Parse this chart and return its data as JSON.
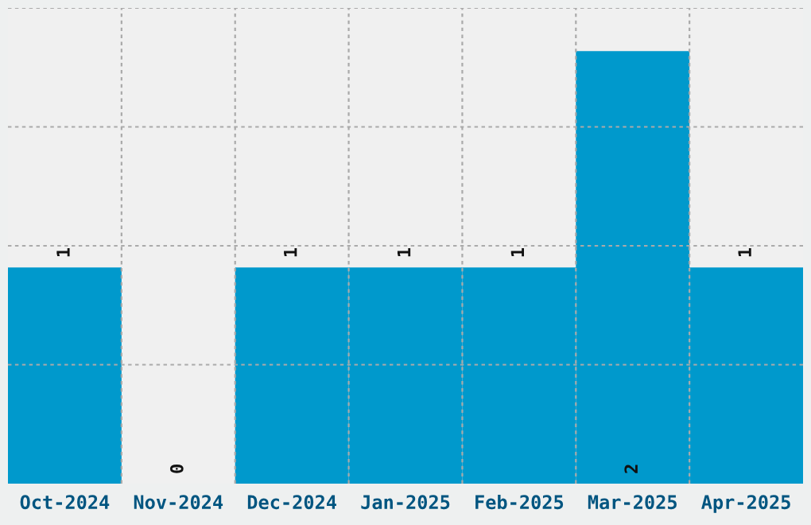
{
  "chart_data": {
    "type": "bar",
    "categories": [
      "Oct-2024",
      "Nov-2024",
      "Dec-2024",
      "Jan-2025",
      "Feb-2025",
      "Mar-2025",
      "Apr-2025"
    ],
    "values": [
      1,
      0,
      1,
      1,
      1,
      2,
      1
    ],
    "color": "#0099cc",
    "data_labels": true,
    "grid": true,
    "ylim": [
      0,
      2.2
    ],
    "yticks": [
      {
        "value": 0.55,
        "label": null
      },
      {
        "value": 1.1,
        "label": null
      },
      {
        "value": 1.65,
        "label": null
      },
      {
        "value": 2.2,
        "label": null
      }
    ],
    "tick_labels": "x"
  }
}
